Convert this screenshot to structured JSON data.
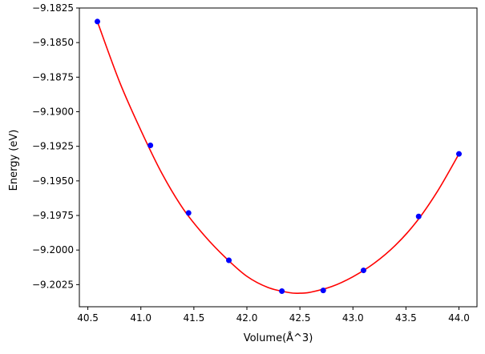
{
  "chart_data": {
    "type": "scatter",
    "title": "",
    "xlabel": "Volume(Å^3)",
    "ylabel": "Energy (eV)",
    "xlim": [
      40.42,
      44.17
    ],
    "ylim": [
      -9.2041,
      -9.1825
    ],
    "grid": false,
    "legend": "none",
    "x_ticks": [
      {
        "value": 40.5,
        "label": "40.5"
      },
      {
        "value": 41.0,
        "label": "41.0"
      },
      {
        "value": 41.5,
        "label": "41.5"
      },
      {
        "value": 42.0,
        "label": "42.0"
      },
      {
        "value": 42.5,
        "label": "42.5"
      },
      {
        "value": 43.0,
        "label": "43.0"
      },
      {
        "value": 43.5,
        "label": "43.5"
      },
      {
        "value": 44.0,
        "label": "44.0"
      }
    ],
    "y_ticks": [
      {
        "value": -9.1825,
        "label": "−9.1825"
      },
      {
        "value": -9.185,
        "label": "−9.1850"
      },
      {
        "value": -9.1875,
        "label": "−9.1875"
      },
      {
        "value": -9.19,
        "label": "−9.1900"
      },
      {
        "value": -9.1925,
        "label": "−9.1925"
      },
      {
        "value": -9.195,
        "label": "−9.1950"
      },
      {
        "value": -9.1975,
        "label": "−9.1975"
      },
      {
        "value": -9.2,
        "label": "−9.2000"
      },
      {
        "value": -9.2025,
        "label": "−9.2025"
      }
    ],
    "series": [
      {
        "kind": "markers",
        "color": "#0000ff",
        "x": [
          40.59,
          41.09,
          41.45,
          41.83,
          42.33,
          42.72,
          43.1,
          43.62,
          44.0
        ],
        "y": [
          -9.18348,
          -9.19243,
          -9.19732,
          -9.20074,
          -9.20297,
          -9.20292,
          -9.20147,
          -9.19757,
          -9.19305
        ]
      },
      {
        "kind": "fit-curve",
        "color": "#ff0000",
        "x": [
          40.59,
          40.8,
          41.0,
          41.2,
          41.4,
          41.6,
          41.8,
          42.0,
          42.2,
          42.4,
          42.5,
          42.6,
          42.8,
          43.0,
          43.2,
          43.4,
          43.6,
          43.8,
          44.0
        ],
        "y": [
          -9.18348,
          -9.18786,
          -9.19134,
          -9.19448,
          -9.19703,
          -9.19896,
          -9.20056,
          -9.2019,
          -9.20271,
          -9.20308,
          -9.20312,
          -9.20305,
          -9.20264,
          -9.20193,
          -9.20096,
          -9.19966,
          -9.19795,
          -9.19572,
          -9.19305
        ]
      }
    ]
  }
}
